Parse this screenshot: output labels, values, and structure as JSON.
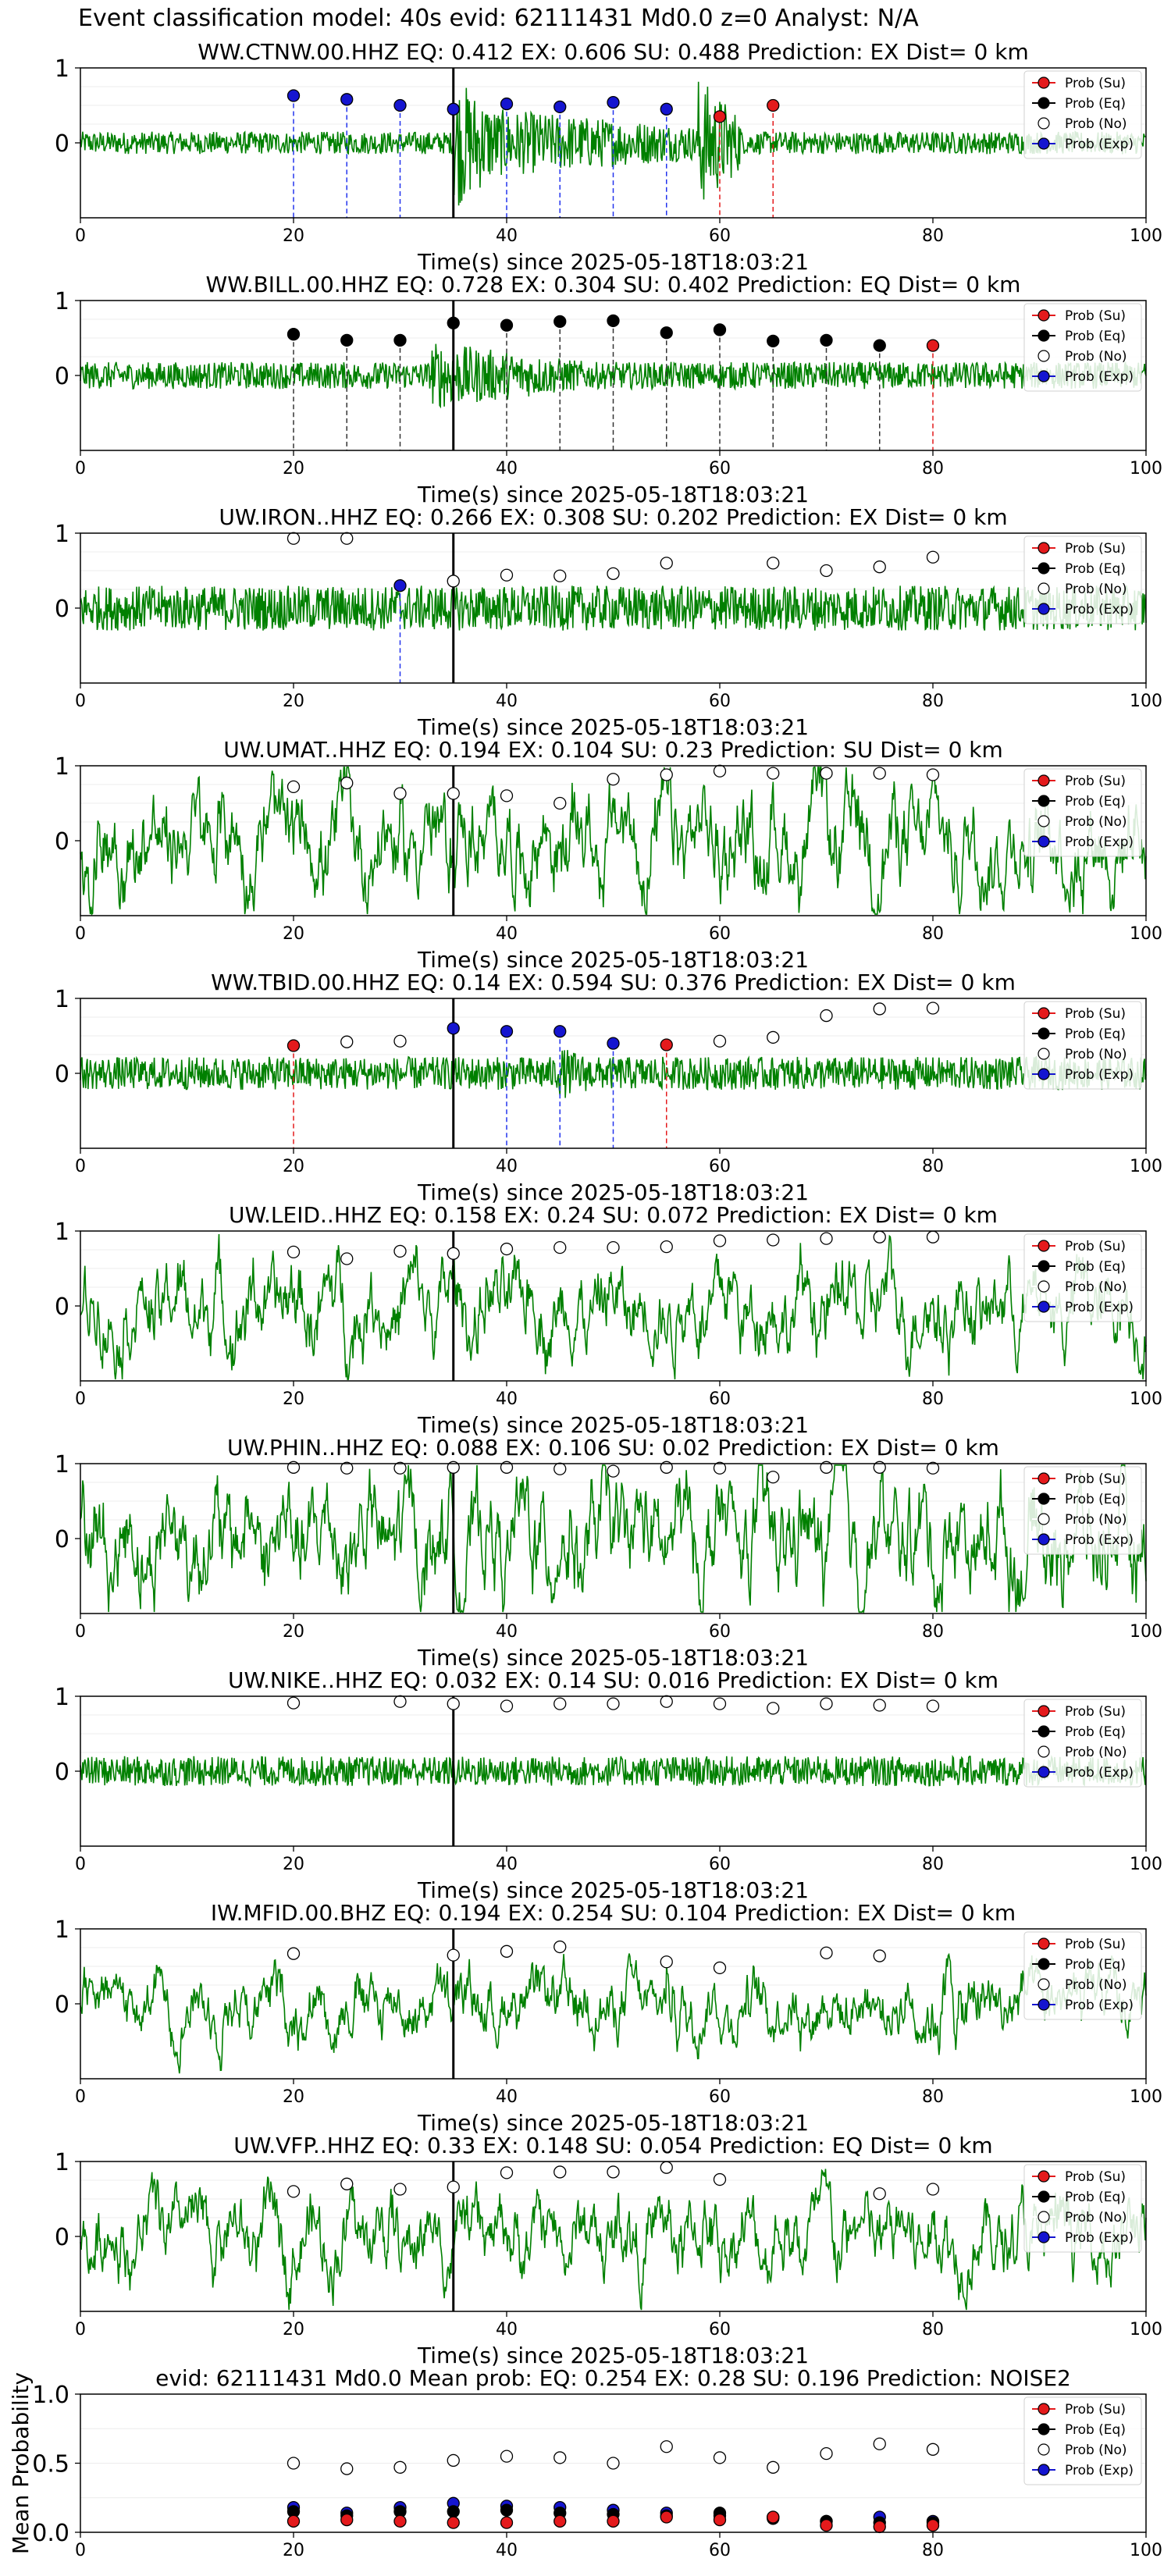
{
  "suptitle": "Event classification model: 40s evid: 62111431 Md0.0 z=0 Analyst: N/A",
  "chart_data": [
    {
      "type": "line",
      "title": "WW.CTNW.00.HHZ   EQ: 0.412  EX: 0.606  SU: 0.488   Prediction: EX    Dist= 0 km",
      "xlabel": "Time(s) since 2025-05-18T18:03:21",
      "xlim": [
        0,
        100
      ],
      "xticks": [
        0,
        20,
        40,
        60,
        80,
        100
      ],
      "ylim": [
        -1,
        1
      ],
      "yticks": [
        0,
        1
      ],
      "signal_amplitude": 0.15,
      "event_bursts": [
        [
          35,
          60,
          0.5
        ],
        [
          35,
          40,
          0.9
        ],
        [
          58,
          62,
          0.9
        ]
      ],
      "pick_time": 35,
      "points": [
        {
          "x": 20,
          "y": 0.63,
          "c": "Exp"
        },
        {
          "x": 25,
          "y": 0.58,
          "c": "Exp"
        },
        {
          "x": 30,
          "y": 0.5,
          "c": "Exp"
        },
        {
          "x": 35,
          "y": 0.45,
          "c": "Exp"
        },
        {
          "x": 40,
          "y": 0.52,
          "c": "Exp"
        },
        {
          "x": 45,
          "y": 0.48,
          "c": "Exp"
        },
        {
          "x": 50,
          "y": 0.54,
          "c": "Exp"
        },
        {
          "x": 55,
          "y": 0.45,
          "c": "Exp"
        },
        {
          "x": 60,
          "y": 0.35,
          "c": "Su"
        },
        {
          "x": 65,
          "y": 0.5,
          "c": "Su"
        }
      ]
    },
    {
      "type": "line",
      "title": "WW.BILL.00.HHZ   EQ: 0.728  EX: 0.304  SU: 0.402   Prediction: EQ    Dist= 0 km",
      "xlabel": "Time(s) since 2025-05-18T18:03:21",
      "xlim": [
        0,
        100
      ],
      "xticks": [
        0,
        20,
        40,
        60,
        80,
        100
      ],
      "ylim": [
        -1,
        1
      ],
      "yticks": [
        0,
        1
      ],
      "signal_amplitude": 0.18,
      "event_bursts": [
        [
          33,
          48,
          0.45
        ]
      ],
      "pick_time": 35,
      "points": [
        {
          "x": 20,
          "y": 0.55,
          "c": "Eq"
        },
        {
          "x": 25,
          "y": 0.47,
          "c": "Eq"
        },
        {
          "x": 30,
          "y": 0.47,
          "c": "Eq"
        },
        {
          "x": 35,
          "y": 0.7,
          "c": "Eq"
        },
        {
          "x": 40,
          "y": 0.67,
          "c": "Eq"
        },
        {
          "x": 45,
          "y": 0.72,
          "c": "Eq"
        },
        {
          "x": 50,
          "y": 0.73,
          "c": "Eq"
        },
        {
          "x": 55,
          "y": 0.57,
          "c": "Eq"
        },
        {
          "x": 60,
          "y": 0.61,
          "c": "Eq"
        },
        {
          "x": 65,
          "y": 0.46,
          "c": "Eq"
        },
        {
          "x": 70,
          "y": 0.47,
          "c": "Eq"
        },
        {
          "x": 75,
          "y": 0.4,
          "c": "Eq"
        },
        {
          "x": 80,
          "y": 0.4,
          "c": "Su"
        }
      ]
    },
    {
      "type": "line",
      "title": "UW.IRON..HHZ   EQ: 0.266  EX: 0.308  SU: 0.202   Prediction: EX    Dist= 0 km",
      "xlabel": "Time(s) since 2025-05-18T18:03:21",
      "xlim": [
        0,
        100
      ],
      "xticks": [
        0,
        20,
        40,
        60,
        80,
        100
      ],
      "ylim": [
        -1,
        1
      ],
      "yticks": [
        0,
        1
      ],
      "signal_amplitude": 0.3,
      "event_bursts": [],
      "pick_time": 35,
      "points": [
        {
          "x": 20,
          "y": 0.93,
          "c": "No"
        },
        {
          "x": 25,
          "y": 0.93,
          "c": "No"
        },
        {
          "x": 30,
          "y": 0.3,
          "c": "Exp"
        },
        {
          "x": 35,
          "y": 0.36,
          "c": "No"
        },
        {
          "x": 40,
          "y": 0.44,
          "c": "No"
        },
        {
          "x": 45,
          "y": 0.43,
          "c": "No"
        },
        {
          "x": 50,
          "y": 0.46,
          "c": "No"
        },
        {
          "x": 55,
          "y": 0.6,
          "c": "No"
        },
        {
          "x": 65,
          "y": 0.6,
          "c": "No"
        },
        {
          "x": 70,
          "y": 0.5,
          "c": "No"
        },
        {
          "x": 75,
          "y": 0.55,
          "c": "No"
        },
        {
          "x": 80,
          "y": 0.68,
          "c": "No"
        }
      ]
    },
    {
      "type": "line",
      "title": "UW.UMAT..HHZ   EQ: 0.194  EX: 0.104  SU: 0.23   Prediction: SU    Dist= 0 km",
      "xlabel": "Time(s) since 2025-05-18T18:03:21",
      "xlim": [
        0,
        100
      ],
      "xticks": [
        0,
        20,
        40,
        60,
        80,
        100
      ],
      "ylim": [
        -1,
        1
      ],
      "yticks": [
        0,
        1
      ],
      "signal_amplitude": 0.65,
      "event_bursts": [],
      "pick_time": 35,
      "points": [
        {
          "x": 20,
          "y": 0.72,
          "c": "No"
        },
        {
          "x": 25,
          "y": 0.77,
          "c": "No"
        },
        {
          "x": 30,
          "y": 0.63,
          "c": "No"
        },
        {
          "x": 35,
          "y": 0.63,
          "c": "No"
        },
        {
          "x": 40,
          "y": 0.6,
          "c": "No"
        },
        {
          "x": 45,
          "y": 0.5,
          "c": "No"
        },
        {
          "x": 50,
          "y": 0.82,
          "c": "No"
        },
        {
          "x": 55,
          "y": 0.88,
          "c": "No"
        },
        {
          "x": 60,
          "y": 0.93,
          "c": "No"
        },
        {
          "x": 65,
          "y": 0.9,
          "c": "No"
        },
        {
          "x": 70,
          "y": 0.9,
          "c": "No"
        },
        {
          "x": 75,
          "y": 0.9,
          "c": "No"
        },
        {
          "x": 80,
          "y": 0.88,
          "c": "No"
        }
      ]
    },
    {
      "type": "line",
      "title": "WW.TBID.00.HHZ   EQ: 0.14  EX: 0.594  SU: 0.376   Prediction: EX    Dist= 0 km",
      "xlabel": "Time(s) since 2025-05-18T18:03:21",
      "xlim": [
        0,
        100
      ],
      "xticks": [
        0,
        20,
        40,
        60,
        80,
        100
      ],
      "ylim": [
        -1,
        1
      ],
      "yticks": [
        0,
        1
      ],
      "signal_amplitude": 0.22,
      "event_bursts": [
        [
          45,
          50,
          0.35
        ]
      ],
      "pick_time": 35,
      "points": [
        {
          "x": 20,
          "y": 0.37,
          "c": "Su"
        },
        {
          "x": 25,
          "y": 0.42,
          "c": "No"
        },
        {
          "x": 30,
          "y": 0.43,
          "c": "No"
        },
        {
          "x": 35,
          "y": 0.6,
          "c": "Exp"
        },
        {
          "x": 40,
          "y": 0.56,
          "c": "Exp"
        },
        {
          "x": 45,
          "y": 0.56,
          "c": "Exp"
        },
        {
          "x": 50,
          "y": 0.4,
          "c": "Exp"
        },
        {
          "x": 55,
          "y": 0.38,
          "c": "Su"
        },
        {
          "x": 60,
          "y": 0.43,
          "c": "No"
        },
        {
          "x": 65,
          "y": 0.48,
          "c": "No"
        },
        {
          "x": 70,
          "y": 0.77,
          "c": "No"
        },
        {
          "x": 75,
          "y": 0.86,
          "c": "No"
        },
        {
          "x": 80,
          "y": 0.87,
          "c": "No"
        }
      ]
    },
    {
      "type": "line",
      "title": "UW.LEID..HHZ   EQ: 0.158  EX: 0.24  SU: 0.072   Prediction: EX    Dist= 0 km",
      "xlabel": "Time(s) since 2025-05-18T18:03:21",
      "xlim": [
        0,
        100
      ],
      "xticks": [
        0,
        20,
        40,
        60,
        80,
        100
      ],
      "ylim": [
        -1,
        1
      ],
      "yticks": [
        0,
        1
      ],
      "signal_amplitude": 0.55,
      "event_bursts": [],
      "pick_time": 35,
      "points": [
        {
          "x": 20,
          "y": 0.72,
          "c": "No"
        },
        {
          "x": 25,
          "y": 0.63,
          "c": "No"
        },
        {
          "x": 30,
          "y": 0.73,
          "c": "No"
        },
        {
          "x": 35,
          "y": 0.7,
          "c": "No"
        },
        {
          "x": 40,
          "y": 0.76,
          "c": "No"
        },
        {
          "x": 45,
          "y": 0.78,
          "c": "No"
        },
        {
          "x": 50,
          "y": 0.78,
          "c": "No"
        },
        {
          "x": 55,
          "y": 0.79,
          "c": "No"
        },
        {
          "x": 60,
          "y": 0.87,
          "c": "No"
        },
        {
          "x": 65,
          "y": 0.88,
          "c": "No"
        },
        {
          "x": 70,
          "y": 0.9,
          "c": "No"
        },
        {
          "x": 75,
          "y": 0.92,
          "c": "No"
        },
        {
          "x": 80,
          "y": 0.92,
          "c": "No"
        }
      ]
    },
    {
      "type": "line",
      "title": "UW.PHIN..HHZ   EQ: 0.088  EX: 0.106  SU: 0.02   Prediction: EX    Dist= 0 km",
      "xlabel": "Time(s) since 2025-05-18T18:03:21",
      "xlim": [
        0,
        100
      ],
      "xticks": [
        0,
        20,
        40,
        60,
        80,
        100
      ],
      "ylim": [
        -1,
        1
      ],
      "yticks": [
        0,
        1
      ],
      "signal_amplitude": 0.7,
      "event_bursts": [],
      "pick_time": 35,
      "points": [
        {
          "x": 20,
          "y": 0.95,
          "c": "No"
        },
        {
          "x": 25,
          "y": 0.94,
          "c": "No"
        },
        {
          "x": 30,
          "y": 0.94,
          "c": "No"
        },
        {
          "x": 35,
          "y": 0.95,
          "c": "No"
        },
        {
          "x": 40,
          "y": 0.95,
          "c": "No"
        },
        {
          "x": 45,
          "y": 0.93,
          "c": "No"
        },
        {
          "x": 50,
          "y": 0.9,
          "c": "No"
        },
        {
          "x": 55,
          "y": 0.95,
          "c": "No"
        },
        {
          "x": 60,
          "y": 0.94,
          "c": "No"
        },
        {
          "x": 65,
          "y": 0.82,
          "c": "No"
        },
        {
          "x": 70,
          "y": 0.95,
          "c": "No"
        },
        {
          "x": 75,
          "y": 0.95,
          "c": "No"
        },
        {
          "x": 80,
          "y": 0.94,
          "c": "No"
        }
      ]
    },
    {
      "type": "line",
      "title": "UW.NIKE..HHZ   EQ: 0.032  EX: 0.14  SU: 0.016   Prediction: EX    Dist= 0 km",
      "xlabel": "Time(s) since 2025-05-18T18:03:21",
      "xlim": [
        0,
        100
      ],
      "xticks": [
        0,
        20,
        40,
        60,
        80,
        100
      ],
      "ylim": [
        -1,
        1
      ],
      "yticks": [
        0,
        1
      ],
      "signal_amplitude": 0.2,
      "event_bursts": [],
      "pick_time": 35,
      "points": [
        {
          "x": 20,
          "y": 0.91,
          "c": "No"
        },
        {
          "x": 30,
          "y": 0.93,
          "c": "No"
        },
        {
          "x": 35,
          "y": 0.9,
          "c": "No"
        },
        {
          "x": 40,
          "y": 0.87,
          "c": "No"
        },
        {
          "x": 45,
          "y": 0.9,
          "c": "No"
        },
        {
          "x": 50,
          "y": 0.9,
          "c": "No"
        },
        {
          "x": 55,
          "y": 0.93,
          "c": "No"
        },
        {
          "x": 60,
          "y": 0.9,
          "c": "No"
        },
        {
          "x": 65,
          "y": 0.84,
          "c": "No"
        },
        {
          "x": 70,
          "y": 0.9,
          "c": "No"
        },
        {
          "x": 75,
          "y": 0.88,
          "c": "No"
        },
        {
          "x": 80,
          "y": 0.87,
          "c": "No"
        }
      ]
    },
    {
      "type": "line",
      "title": "IW.MFID.00.BHZ   EQ: 0.194  EX: 0.254  SU: 0.104   Prediction: EX    Dist= 0 km",
      "xlabel": "Time(s) since 2025-05-18T18:03:21",
      "xlim": [
        0,
        100
      ],
      "xticks": [
        0,
        20,
        40,
        60,
        80,
        100
      ],
      "ylim": [
        -1,
        1
      ],
      "yticks": [
        0,
        1
      ],
      "signal_amplitude": 0.4,
      "event_bursts": [
        [
          55,
          60,
          0.6
        ],
        [
          80,
          100,
          0.55
        ]
      ],
      "pick_time": 35,
      "points": [
        {
          "x": 20,
          "y": 0.67,
          "c": "No"
        },
        {
          "x": 35,
          "y": 0.65,
          "c": "No"
        },
        {
          "x": 40,
          "y": 0.7,
          "c": "No"
        },
        {
          "x": 45,
          "y": 0.76,
          "c": "No"
        },
        {
          "x": 55,
          "y": 0.56,
          "c": "No"
        },
        {
          "x": 60,
          "y": 0.48,
          "c": "No"
        },
        {
          "x": 70,
          "y": 0.68,
          "c": "No"
        },
        {
          "x": 75,
          "y": 0.64,
          "c": "No"
        }
      ]
    },
    {
      "type": "line",
      "title": "UW.VFP..HHZ   EQ: 0.33  EX: 0.148  SU: 0.054   Prediction: EQ    Dist= 0 km",
      "xlabel": "Time(s) since 2025-05-18T18:03:21",
      "xlim": [
        0,
        100
      ],
      "xticks": [
        0,
        20,
        40,
        60,
        80,
        100
      ],
      "ylim": [
        -1,
        1
      ],
      "yticks": [
        0,
        1
      ],
      "signal_amplitude": 0.5,
      "event_bursts": [],
      "pick_time": 35,
      "points": [
        {
          "x": 20,
          "y": 0.6,
          "c": "No"
        },
        {
          "x": 25,
          "y": 0.7,
          "c": "No"
        },
        {
          "x": 30,
          "y": 0.63,
          "c": "No"
        },
        {
          "x": 35,
          "y": 0.66,
          "c": "No"
        },
        {
          "x": 40,
          "y": 0.85,
          "c": "No"
        },
        {
          "x": 45,
          "y": 0.86,
          "c": "No"
        },
        {
          "x": 50,
          "y": 0.86,
          "c": "No"
        },
        {
          "x": 55,
          "y": 0.92,
          "c": "No"
        },
        {
          "x": 60,
          "y": 0.76,
          "c": "No"
        },
        {
          "x": 75,
          "y": 0.57,
          "c": "No"
        },
        {
          "x": 80,
          "y": 0.63,
          "c": "No"
        }
      ]
    },
    {
      "type": "scatter",
      "title": "evid: 62111431  Md0.0   Mean prob:   EQ: 0.254  EX: 0.28  SU: 0.196   Prediction: NOISE2",
      "ylabel": "Mean Probability",
      "xlim": [
        0,
        100
      ],
      "xticks": [
        0,
        20,
        40,
        60,
        80,
        100
      ],
      "ylim": [
        0,
        1
      ],
      "yticks": [
        0.0,
        0.5,
        1.0
      ],
      "ytick_labels": [
        "0.0",
        "0.5",
        "1.0"
      ],
      "x": [
        20,
        25,
        30,
        35,
        40,
        45,
        50,
        55,
        60,
        65,
        70,
        75,
        80
      ],
      "series": [
        {
          "name": "Prob (No)",
          "c": "No",
          "values": [
            0.5,
            0.46,
            0.47,
            0.52,
            0.55,
            0.54,
            0.5,
            0.62,
            0.54,
            0.47,
            0.57,
            0.64,
            0.6
          ]
        },
        {
          "name": "Prob (Exp)",
          "c": "Exp",
          "values": [
            0.18,
            0.14,
            0.18,
            0.21,
            0.19,
            0.18,
            0.16,
            0.14,
            0.12,
            0.11,
            0.08,
            0.11,
            0.08
          ]
        },
        {
          "name": "Prob (Eq)",
          "c": "Eq",
          "values": [
            0.15,
            0.12,
            0.15,
            0.15,
            0.16,
            0.14,
            0.13,
            0.12,
            0.14,
            0.1,
            0.08,
            0.07,
            0.07
          ]
        },
        {
          "name": "Prob (Su)",
          "c": "Su",
          "values": [
            0.08,
            0.09,
            0.08,
            0.07,
            0.07,
            0.08,
            0.08,
            0.11,
            0.09,
            0.11,
            0.05,
            0.04,
            0.05
          ]
        }
      ]
    }
  ],
  "legend": {
    "placement": "top-right",
    "items": [
      {
        "label": "Prob (Su)",
        "c": "Su"
      },
      {
        "label": "Prob (Eq)",
        "c": "Eq"
      },
      {
        "label": "Prob (No)",
        "c": "No"
      },
      {
        "label": "Prob (Exp)",
        "c": "Exp"
      }
    ]
  },
  "colors": {
    "Su": "#e41a1c",
    "Eq": "#000000",
    "No": "#ffffff",
    "Exp": "#1515d0",
    "waveform": "#008000",
    "pick": "#000000",
    "lineSu": "#e41a1c",
    "lineEq": "#333333",
    "lineExp": "#2233ee"
  }
}
